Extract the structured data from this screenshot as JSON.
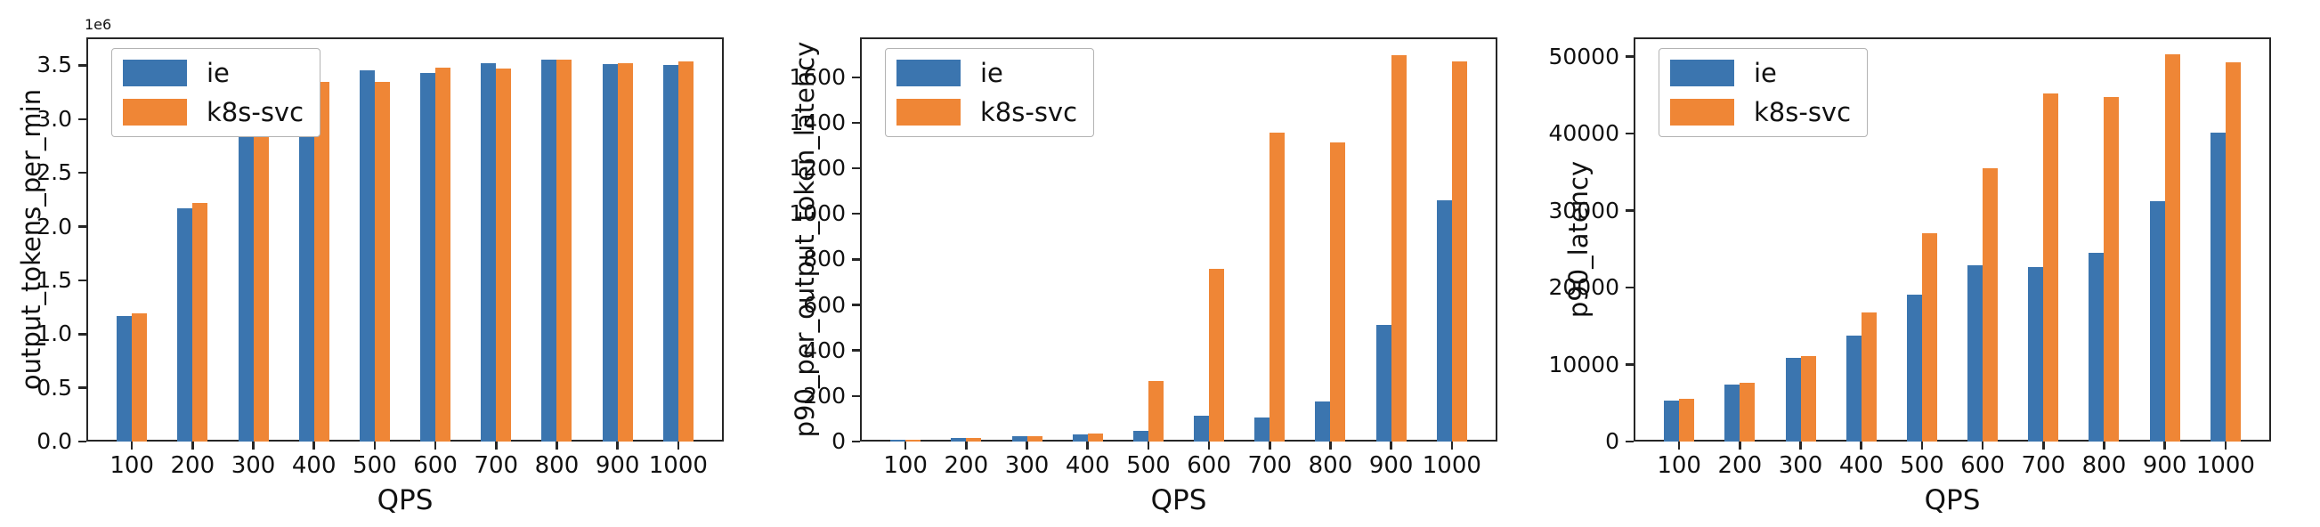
{
  "figure": {
    "background": "#ffffff"
  },
  "colors": {
    "series_ie": "#3b75af",
    "series_k8s_svc": "#ef8636",
    "text": "#111111",
    "spine": "#262626",
    "legend_border": "#b3b3b3"
  },
  "legend": {
    "entries": [
      "ie",
      "k8s-svc"
    ],
    "position": "upper left"
  },
  "chart_data": [
    {
      "type": "bar",
      "title": "",
      "ylabel": "output_tokens_per_min",
      "xlabel": "QPS",
      "offset_text": "1e6",
      "grid": false,
      "legend_position": "upper left",
      "categories": [
        100,
        200,
        300,
        400,
        500,
        600,
        700,
        800,
        900,
        1000
      ],
      "series": [
        {
          "name": "ie",
          "color": "#3b75af",
          "values": [
            1170000,
            2170000,
            2910000,
            3200000,
            3450000,
            3430000,
            3520000,
            3550000,
            3510000,
            3500000
          ]
        },
        {
          "name": "k8s-svc",
          "color": "#ef8636",
          "values": [
            1190000,
            2220000,
            2920000,
            3350000,
            3350000,
            3480000,
            3470000,
            3550000,
            3520000,
            3540000
          ]
        }
      ],
      "ylim": [
        0,
        3760000
      ],
      "yticks": [
        {
          "value": 0,
          "label": "0.0"
        },
        {
          "value": 500000,
          "label": "0.5"
        },
        {
          "value": 1000000,
          "label": "1.0"
        },
        {
          "value": 1500000,
          "label": "1.5"
        },
        {
          "value": 2000000,
          "label": "2.0"
        },
        {
          "value": 2500000,
          "label": "2.5"
        },
        {
          "value": 3000000,
          "label": "3.0"
        },
        {
          "value": 3500000,
          "label": "3.5"
        }
      ]
    },
    {
      "type": "bar",
      "title": "",
      "ylabel": "p90_per_output_token_latency",
      "xlabel": "QPS",
      "offset_text": "",
      "grid": false,
      "legend_position": "upper left",
      "categories": [
        100,
        200,
        300,
        400,
        500,
        600,
        700,
        800,
        900,
        1000
      ],
      "series": [
        {
          "name": "ie",
          "color": "#3b75af",
          "values": [
            9,
            16,
            23,
            33,
            46,
            114,
            104,
            174,
            512,
            1058
          ]
        },
        {
          "name": "k8s-svc",
          "color": "#ef8636",
          "values": [
            9,
            16,
            23,
            37,
            266,
            760,
            1356,
            1312,
            1696,
            1670
          ]
        }
      ],
      "ylim": [
        0,
        1775
      ],
      "yticks": [
        {
          "value": 0,
          "label": "0"
        },
        {
          "value": 200,
          "label": "200"
        },
        {
          "value": 400,
          "label": "400"
        },
        {
          "value": 600,
          "label": "600"
        },
        {
          "value": 800,
          "label": "800"
        },
        {
          "value": 1000,
          "label": "1000"
        },
        {
          "value": 1200,
          "label": "1200"
        },
        {
          "value": 1400,
          "label": "1400"
        },
        {
          "value": 1600,
          "label": "1600"
        }
      ]
    },
    {
      "type": "bar",
      "title": "",
      "ylabel": "p90_latency",
      "xlabel": "QPS",
      "offset_text": "",
      "grid": false,
      "legend_position": "upper left",
      "categories": [
        100,
        200,
        300,
        400,
        500,
        600,
        700,
        800,
        900,
        1000
      ],
      "series": [
        {
          "name": "ie",
          "color": "#3b75af",
          "values": [
            5300,
            7400,
            10900,
            13800,
            19100,
            22900,
            22700,
            24500,
            31200,
            40100
          ]
        },
        {
          "name": "k8s-svc",
          "color": "#ef8636",
          "values": [
            5500,
            7600,
            11100,
            16800,
            27100,
            35500,
            45200,
            44800,
            50300,
            49300
          ]
        }
      ],
      "ylim": [
        0,
        52500
      ],
      "yticks": [
        {
          "value": 0,
          "label": "0"
        },
        {
          "value": 10000,
          "label": "10000"
        },
        {
          "value": 20000,
          "label": "20000"
        },
        {
          "value": 30000,
          "label": "30000"
        },
        {
          "value": 40000,
          "label": "40000"
        },
        {
          "value": 50000,
          "label": "50000"
        }
      ]
    }
  ]
}
